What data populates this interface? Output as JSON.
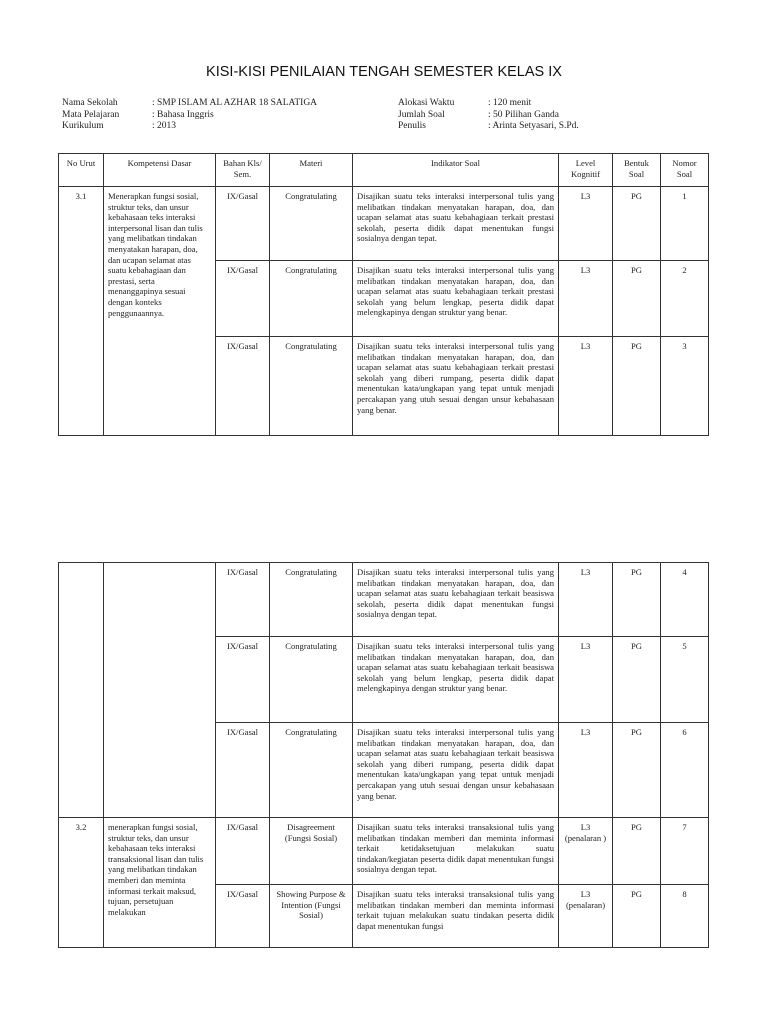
{
  "title": "KISI-KISI PENILAIAN TENGAH SEMESTER KELAS IX",
  "meta_left": [
    {
      "label": "Nama Sekolah",
      "value": ": SMP ISLAM AL AZHAR 18 SALATIGA"
    },
    {
      "label": "Mata Pelajaran",
      "value": ": Bahasa Inggris"
    },
    {
      "label": "Kurikulum",
      "value": ": 2013"
    }
  ],
  "meta_right": [
    {
      "label": "Alokasi Waktu",
      "value": ": 120 menit"
    },
    {
      "label": "Jumlah Soal",
      "value": ": 50 Pilihan Ganda"
    },
    {
      "label": "Penulis",
      "value": ": Arinta Setyasari, S.Pd."
    }
  ],
  "headers": [
    "No Urut",
    "Kompetensi Dasar",
    "Bahan Kls/ Sem.",
    "Materi",
    "Indikator Soal",
    "Level Kognitif",
    "Bentuk Soal",
    "Nomor Soal"
  ],
  "kd": [
    {
      "no": "3.1",
      "text": "Menerapkan fungsi sosial, struktur teks, dan unsur kebahasaan teks interaksi interpersonal lisan dan tulis yang melibatkan tindakan menyatakan harapan, doa, dan ucapan selamat atas suatu kebahagiaan dan prestasi, serta menanggapinya sesuai dengan konteks penggunaannya."
    },
    {
      "no": "3.2",
      "text": "menerapkan fungsi sosial, struktur teks, dan unsur kebahasaan teks interaksi transaksional lisan dan tulis yang melibatkan tindakan memberi dan meminta informasi terkait maksud, tujuan, persetujuan melakukan"
    }
  ],
  "rows": [
    {
      "bahan": "IX/Gasal",
      "materi": "Congratulating",
      "indikator": "Disajikan suatu teks interaksi interpersonal tulis yang melibatkan tindakan menyatakan harapan, doa, dan ucapan selamat atas suatu kebahagiaan terkait prestasi sekolah, peserta didik dapat menentukan fungsi sosialnya dengan tepat.",
      "level": "L3",
      "bentuk": "PG",
      "nomor": "1"
    },
    {
      "bahan": "IX/Gasal",
      "materi": "Congratulating",
      "indikator": "Disajikan suatu teks interaksi interpersonal tulis yang melibatkan tindakan menyatakan harapan, doa, dan ucapan selamat atas suatu kebahagiaan terkait prestasi sekolah yang belum lengkap, peserta didik dapat melengkapinya dengan struktur yang benar.",
      "level": "L3",
      "bentuk": "PG",
      "nomor": "2"
    },
    {
      "bahan": "IX/Gasal",
      "materi": "Congratulating",
      "indikator": "Disajikan suatu teks interaksi interpersonal tulis yang melibatkan tindakan menyatakan harapan, doa, dan ucapan selamat atas suatu kebahagiaan terkait prestasi sekolah yang diberi rumpang, peserta didik dapat menentukan kata/ungkapan yang tepat untuk menjadi percakapan yang utuh sesuai dengan unsur kebahasaan yang benar.",
      "level": "L3",
      "bentuk": "PG",
      "nomor": "3"
    },
    {
      "bahan": "IX/Gasal",
      "materi": "Congratulating",
      "indikator": "Disajikan suatu teks interaksi interpersonal tulis yang melibatkan tindakan menyatakan harapan, doa, dan ucapan selamat atas suatu kebahagiaan terkait beasiswa sekolah, peserta didik dapat menentukan fungsi sosialnya dengan tepat.",
      "level": "L3",
      "bentuk": "PG",
      "nomor": "4"
    },
    {
      "bahan": "IX/Gasal",
      "materi": "Congratulating",
      "indikator": "Disajikan suatu teks interaksi interpersonal tulis yang melibatkan tindakan menyatakan harapan, doa, dan ucapan selamat atas suatu kebahagiaan terkait beasiswa sekolah yang belum lengkap, peserta didik dapat melengkapinya dengan struktur yang benar.",
      "level": "L3",
      "bentuk": "PG",
      "nomor": "5"
    },
    {
      "bahan": "IX/Gasal",
      "materi": "Congratulating",
      "indikator": "Disajikan suatu teks interaksi interpersonal tulis yang melibatkan tindakan menyatakan harapan, doa, dan ucapan selamat atas suatu kebahagiaan terkait beasiswa sekolah yang diberi rumpang, peserta didik dapat menentukan kata/ungkapan yang tepat untuk menjadi percakapan yang utuh sesuai dengan unsur kebahasaan yang benar.",
      "level": "L3",
      "bentuk": "PG",
      "nomor": "6"
    },
    {
      "bahan": "IX/Gasal",
      "materi": "Disagreement (Fungsi Sosial)",
      "indikator": "Disajikan suatu teks interaksi transaksional tulis yang melibatkan tindakan memberi dan meminta informasi terkait ketidaksetujuan melakukan suatu tindakan/kegiatan peserta didik dapat menentukan fungsi sosialnya dengan tepat.",
      "level": "L3 (penalaran )",
      "bentuk": "PG",
      "nomor": "7"
    },
    {
      "bahan": "IX/Gasal",
      "materi": "Showing Purpose & Intention (Fungsi Sosial)",
      "indikator": "Disajikan suatu teks interaksi transaksional tulis yang melibatkan tindakan memberi dan meminta informasi terkait tujuan melakukan suatu tindakan peserta didik dapat menentukan fungsi",
      "level": "L3 (penalaran)",
      "bentuk": "PG",
      "nomor": "8"
    }
  ]
}
